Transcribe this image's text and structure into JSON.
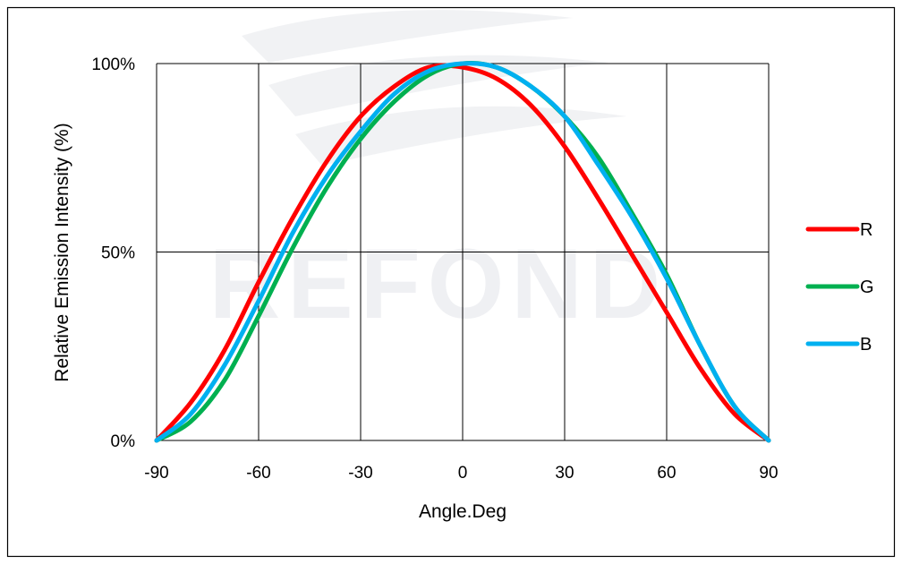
{
  "watermark": {
    "text": "REFOND"
  },
  "chart_data": {
    "type": "line",
    "title": "",
    "xlabel": "Angle.Deg",
    "ylabel": "Relative Emission Intensity (%)",
    "xlim": [
      -90,
      90
    ],
    "ylim": [
      0,
      100
    ],
    "x_ticks": [
      "-90",
      "-60",
      "-30",
      "0",
      "30",
      "60",
      "90"
    ],
    "x_tick_values": [
      -90,
      -60,
      -30,
      0,
      30,
      60,
      90
    ],
    "y_ticks": [
      "0%",
      "50%",
      "100%"
    ],
    "y_tick_values": [
      0,
      50,
      100
    ],
    "grid": true,
    "legend_position": "right",
    "x": [
      -90,
      -80,
      -70,
      -60,
      -50,
      -40,
      -30,
      -20,
      -10,
      0,
      10,
      20,
      30,
      40,
      50,
      60,
      70,
      80,
      90
    ],
    "series": [
      {
        "name": "R",
        "color": "#ff0000",
        "values": [
          0,
          10,
          24,
          42,
          59,
          74,
          86,
          94,
          99,
          99,
          96,
          89,
          78,
          64,
          49,
          34,
          19,
          7,
          0
        ]
      },
      {
        "name": "G",
        "color": "#00b050",
        "values": [
          0,
          5,
          16,
          33,
          51,
          67,
          80,
          90,
          97,
          100,
          99,
          94,
          86,
          75,
          60,
          44,
          25,
          9,
          0
        ]
      },
      {
        "name": "B",
        "color": "#00b0f0",
        "values": [
          0,
          7,
          20,
          37,
          55,
          70,
          82,
          92,
          98,
          100,
          99,
          94,
          86,
          73,
          59,
          43,
          25,
          9,
          0
        ]
      }
    ]
  }
}
